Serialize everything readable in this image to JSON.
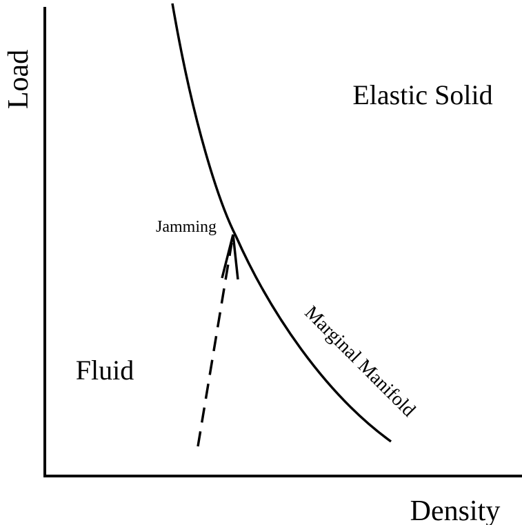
{
  "axes": {
    "y_label": "Load",
    "x_label": "Density"
  },
  "regions": {
    "solid": "Elastic Solid",
    "fluid": "Fluid"
  },
  "annotations": {
    "jamming": "Jamming",
    "manifold": "Marginal Manifold"
  }
}
